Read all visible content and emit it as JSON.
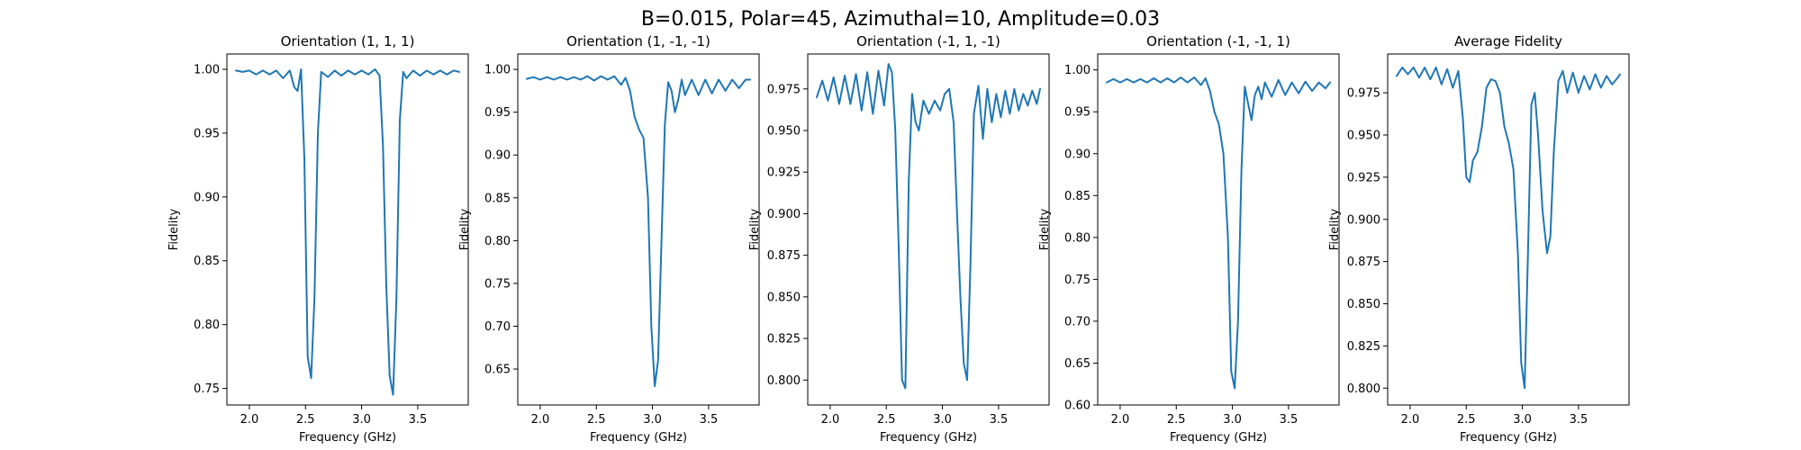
{
  "figure": {
    "suptitle": "B=0.015, Polar=45, Azimuthal=10, Amplitude=0.03"
  },
  "colors": {
    "line": "#1f77b4",
    "axis": "#000000",
    "background": "#ffffff"
  },
  "chart_data": [
    {
      "type": "line",
      "title": "Orientation (1, 1, 1)",
      "xlabel": "Frequency (GHz)",
      "ylabel": "Fidelity",
      "xlim": [
        1.8,
        3.95
      ],
      "ylim": [
        0.737,
        1.012
      ],
      "xticks": [
        2.0,
        2.5,
        3.0,
        3.5
      ],
      "xtick_labels": [
        "2.0",
        "2.5",
        "3.0",
        "3.5"
      ],
      "yticks": [
        0.75,
        0.8,
        0.85,
        0.9,
        0.95,
        1.0
      ],
      "ytick_labels": [
        "0.75",
        "0.80",
        "0.85",
        "0.90",
        "0.95",
        "1.00"
      ],
      "grid": false,
      "series": [
        {
          "x": [
            1.88,
            1.94,
            2.0,
            2.06,
            2.12,
            2.18,
            2.24,
            2.3,
            2.36,
            2.4,
            2.43,
            2.46,
            2.49,
            2.52,
            2.55,
            2.58,
            2.61,
            2.64,
            2.7,
            2.76,
            2.82,
            2.88,
            2.94,
            3.0,
            3.06,
            3.12,
            3.16,
            3.19,
            3.22,
            3.25,
            3.28,
            3.31,
            3.34,
            3.37,
            3.4,
            3.46,
            3.52,
            3.58,
            3.64,
            3.7,
            3.76,
            3.82,
            3.87
          ],
          "y": [
            0.999,
            0.998,
            0.999,
            0.996,
            0.999,
            0.996,
            0.999,
            0.993,
            0.999,
            0.986,
            0.983,
            1.0,
            0.93,
            0.775,
            0.758,
            0.82,
            0.95,
            0.998,
            0.994,
            0.999,
            0.995,
            0.999,
            0.996,
            0.999,
            0.996,
            1.0,
            0.995,
            0.94,
            0.83,
            0.76,
            0.745,
            0.82,
            0.96,
            0.998,
            0.993,
            0.999,
            0.995,
            0.999,
            0.996,
            0.999,
            0.996,
            0.999,
            0.998
          ]
        }
      ]
    },
    {
      "type": "line",
      "title": "Orientation (1, -1, -1)",
      "xlabel": "Frequency (GHz)",
      "ylabel": "Fidelity",
      "xlim": [
        1.8,
        3.95
      ],
      "ylim": [
        0.608,
        1.018
      ],
      "xticks": [
        2.0,
        2.5,
        3.0,
        3.5
      ],
      "xtick_labels": [
        "2.0",
        "2.5",
        "3.0",
        "3.5"
      ],
      "yticks": [
        0.65,
        0.7,
        0.75,
        0.8,
        0.85,
        0.9,
        0.95,
        1.0
      ],
      "ytick_labels": [
        "0.65",
        "0.70",
        "0.75",
        "0.80",
        "0.85",
        "0.90",
        "0.95",
        "1.00"
      ],
      "grid": false,
      "series": [
        {
          "x": [
            1.88,
            1.94,
            2.0,
            2.06,
            2.12,
            2.18,
            2.24,
            2.3,
            2.36,
            2.42,
            2.48,
            2.54,
            2.6,
            2.66,
            2.72,
            2.76,
            2.8,
            2.84,
            2.88,
            2.92,
            2.96,
            2.99,
            3.02,
            3.05,
            3.08,
            3.11,
            3.14,
            3.17,
            3.2,
            3.23,
            3.26,
            3.29,
            3.35,
            3.41,
            3.47,
            3.53,
            3.59,
            3.65,
            3.71,
            3.77,
            3.83,
            3.87
          ],
          "y": [
            0.989,
            0.991,
            0.988,
            0.991,
            0.988,
            0.991,
            0.988,
            0.991,
            0.988,
            0.992,
            0.987,
            0.992,
            0.988,
            0.992,
            0.982,
            0.99,
            0.975,
            0.945,
            0.93,
            0.92,
            0.85,
            0.7,
            0.63,
            0.66,
            0.8,
            0.935,
            0.985,
            0.975,
            0.95,
            0.965,
            0.988,
            0.97,
            0.988,
            0.97,
            0.988,
            0.972,
            0.988,
            0.975,
            0.988,
            0.978,
            0.988,
            0.988
          ]
        }
      ]
    },
    {
      "type": "line",
      "title": "Orientation (-1, 1, -1)",
      "xlabel": "Frequency (GHz)",
      "ylabel": "Fidelity",
      "xlim": [
        1.8,
        3.95
      ],
      "ylim": [
        0.785,
        0.996
      ],
      "xticks": [
        2.0,
        2.5,
        3.0,
        3.5
      ],
      "xtick_labels": [
        "2.0",
        "2.5",
        "3.0",
        "3.5"
      ],
      "yticks": [
        0.8,
        0.825,
        0.85,
        0.875,
        0.9,
        0.925,
        0.95,
        0.975
      ],
      "ytick_labels": [
        "0.800",
        "0.825",
        "0.850",
        "0.875",
        "0.900",
        "0.925",
        "0.950",
        "0.975"
      ],
      "grid": false,
      "series": [
        {
          "x": [
            1.88,
            1.93,
            1.98,
            2.03,
            2.08,
            2.13,
            2.18,
            2.23,
            2.28,
            2.33,
            2.38,
            2.43,
            2.48,
            2.52,
            2.55,
            2.58,
            2.61,
            2.64,
            2.67,
            2.7,
            2.73,
            2.76,
            2.79,
            2.83,
            2.88,
            2.93,
            2.98,
            3.02,
            3.06,
            3.1,
            3.13,
            3.16,
            3.19,
            3.22,
            3.25,
            3.28,
            3.32,
            3.36,
            3.4,
            3.44,
            3.48,
            3.52,
            3.56,
            3.6,
            3.64,
            3.68,
            3.72,
            3.76,
            3.8,
            3.84,
            3.87
          ],
          "y": [
            0.97,
            0.98,
            0.968,
            0.982,
            0.966,
            0.983,
            0.966,
            0.984,
            0.962,
            0.985,
            0.96,
            0.986,
            0.965,
            0.99,
            0.985,
            0.95,
            0.88,
            0.8,
            0.795,
            0.92,
            0.972,
            0.955,
            0.95,
            0.968,
            0.96,
            0.968,
            0.962,
            0.972,
            0.975,
            0.955,
            0.9,
            0.85,
            0.81,
            0.8,
            0.87,
            0.96,
            0.977,
            0.945,
            0.975,
            0.955,
            0.972,
            0.958,
            0.974,
            0.96,
            0.975,
            0.962,
            0.972,
            0.965,
            0.974,
            0.966,
            0.975
          ]
        }
      ]
    },
    {
      "type": "line",
      "title": "Orientation (-1, -1, 1)",
      "xlabel": "Frequency (GHz)",
      "ylabel": "Fidelity",
      "xlim": [
        1.8,
        3.95
      ],
      "ylim": [
        0.6,
        1.019
      ],
      "xticks": [
        2.0,
        2.5,
        3.0,
        3.5
      ],
      "xtick_labels": [
        "2.0",
        "2.5",
        "3.0",
        "3.5"
      ],
      "yticks": [
        0.6,
        0.65,
        0.7,
        0.75,
        0.8,
        0.85,
        0.9,
        0.95,
        1.0
      ],
      "ytick_labels": [
        "0.60",
        "0.65",
        "0.70",
        "0.75",
        "0.80",
        "0.85",
        "0.90",
        "0.95",
        "1.00"
      ],
      "grid": false,
      "series": [
        {
          "x": [
            1.88,
            1.94,
            2.0,
            2.06,
            2.12,
            2.18,
            2.24,
            2.3,
            2.36,
            2.42,
            2.48,
            2.54,
            2.6,
            2.66,
            2.72,
            2.76,
            2.8,
            2.84,
            2.88,
            2.92,
            2.96,
            2.99,
            3.02,
            3.05,
            3.08,
            3.11,
            3.14,
            3.17,
            3.2,
            3.23,
            3.26,
            3.29,
            3.35,
            3.41,
            3.47,
            3.53,
            3.59,
            3.65,
            3.71,
            3.77,
            3.83,
            3.87
          ],
          "y": [
            0.985,
            0.989,
            0.985,
            0.989,
            0.985,
            0.989,
            0.985,
            0.99,
            0.985,
            0.99,
            0.985,
            0.991,
            0.985,
            0.991,
            0.982,
            0.99,
            0.975,
            0.95,
            0.935,
            0.9,
            0.8,
            0.64,
            0.62,
            0.7,
            0.88,
            0.98,
            0.96,
            0.94,
            0.97,
            0.98,
            0.965,
            0.985,
            0.968,
            0.988,
            0.97,
            0.985,
            0.972,
            0.986,
            0.975,
            0.985,
            0.978,
            0.985
          ]
        }
      ]
    },
    {
      "type": "line",
      "title": "Average Fidelity",
      "xlabel": "Frequency (GHz)",
      "ylabel": "Fidelity",
      "xlim": [
        1.8,
        3.95
      ],
      "ylim": [
        0.79,
        0.998
      ],
      "xticks": [
        2.0,
        2.5,
        3.0,
        3.5
      ],
      "xtick_labels": [
        "2.0",
        "2.5",
        "3.0",
        "3.5"
      ],
      "yticks": [
        0.8,
        0.825,
        0.85,
        0.875,
        0.9,
        0.925,
        0.95,
        0.975
      ],
      "ytick_labels": [
        "0.800",
        "0.825",
        "0.850",
        "0.875",
        "0.900",
        "0.925",
        "0.950",
        "0.975"
      ],
      "grid": false,
      "series": [
        {
          "x": [
            1.88,
            1.93,
            1.98,
            2.03,
            2.08,
            2.13,
            2.18,
            2.23,
            2.28,
            2.33,
            2.38,
            2.43,
            2.47,
            2.5,
            2.53,
            2.56,
            2.6,
            2.64,
            2.68,
            2.72,
            2.76,
            2.8,
            2.84,
            2.88,
            2.92,
            2.96,
            2.99,
            3.02,
            3.05,
            3.08,
            3.11,
            3.14,
            3.18,
            3.22,
            3.25,
            3.28,
            3.32,
            3.36,
            3.4,
            3.45,
            3.5,
            3.55,
            3.6,
            3.65,
            3.7,
            3.75,
            3.8,
            3.85,
            3.87
          ],
          "y": [
            0.985,
            0.99,
            0.986,
            0.99,
            0.984,
            0.99,
            0.983,
            0.99,
            0.98,
            0.989,
            0.978,
            0.988,
            0.96,
            0.925,
            0.922,
            0.935,
            0.94,
            0.955,
            0.978,
            0.983,
            0.982,
            0.975,
            0.955,
            0.945,
            0.93,
            0.88,
            0.815,
            0.8,
            0.88,
            0.968,
            0.975,
            0.95,
            0.905,
            0.88,
            0.89,
            0.94,
            0.982,
            0.988,
            0.975,
            0.987,
            0.975,
            0.985,
            0.977,
            0.986,
            0.978,
            0.985,
            0.98,
            0.984,
            0.986
          ]
        }
      ]
    }
  ]
}
